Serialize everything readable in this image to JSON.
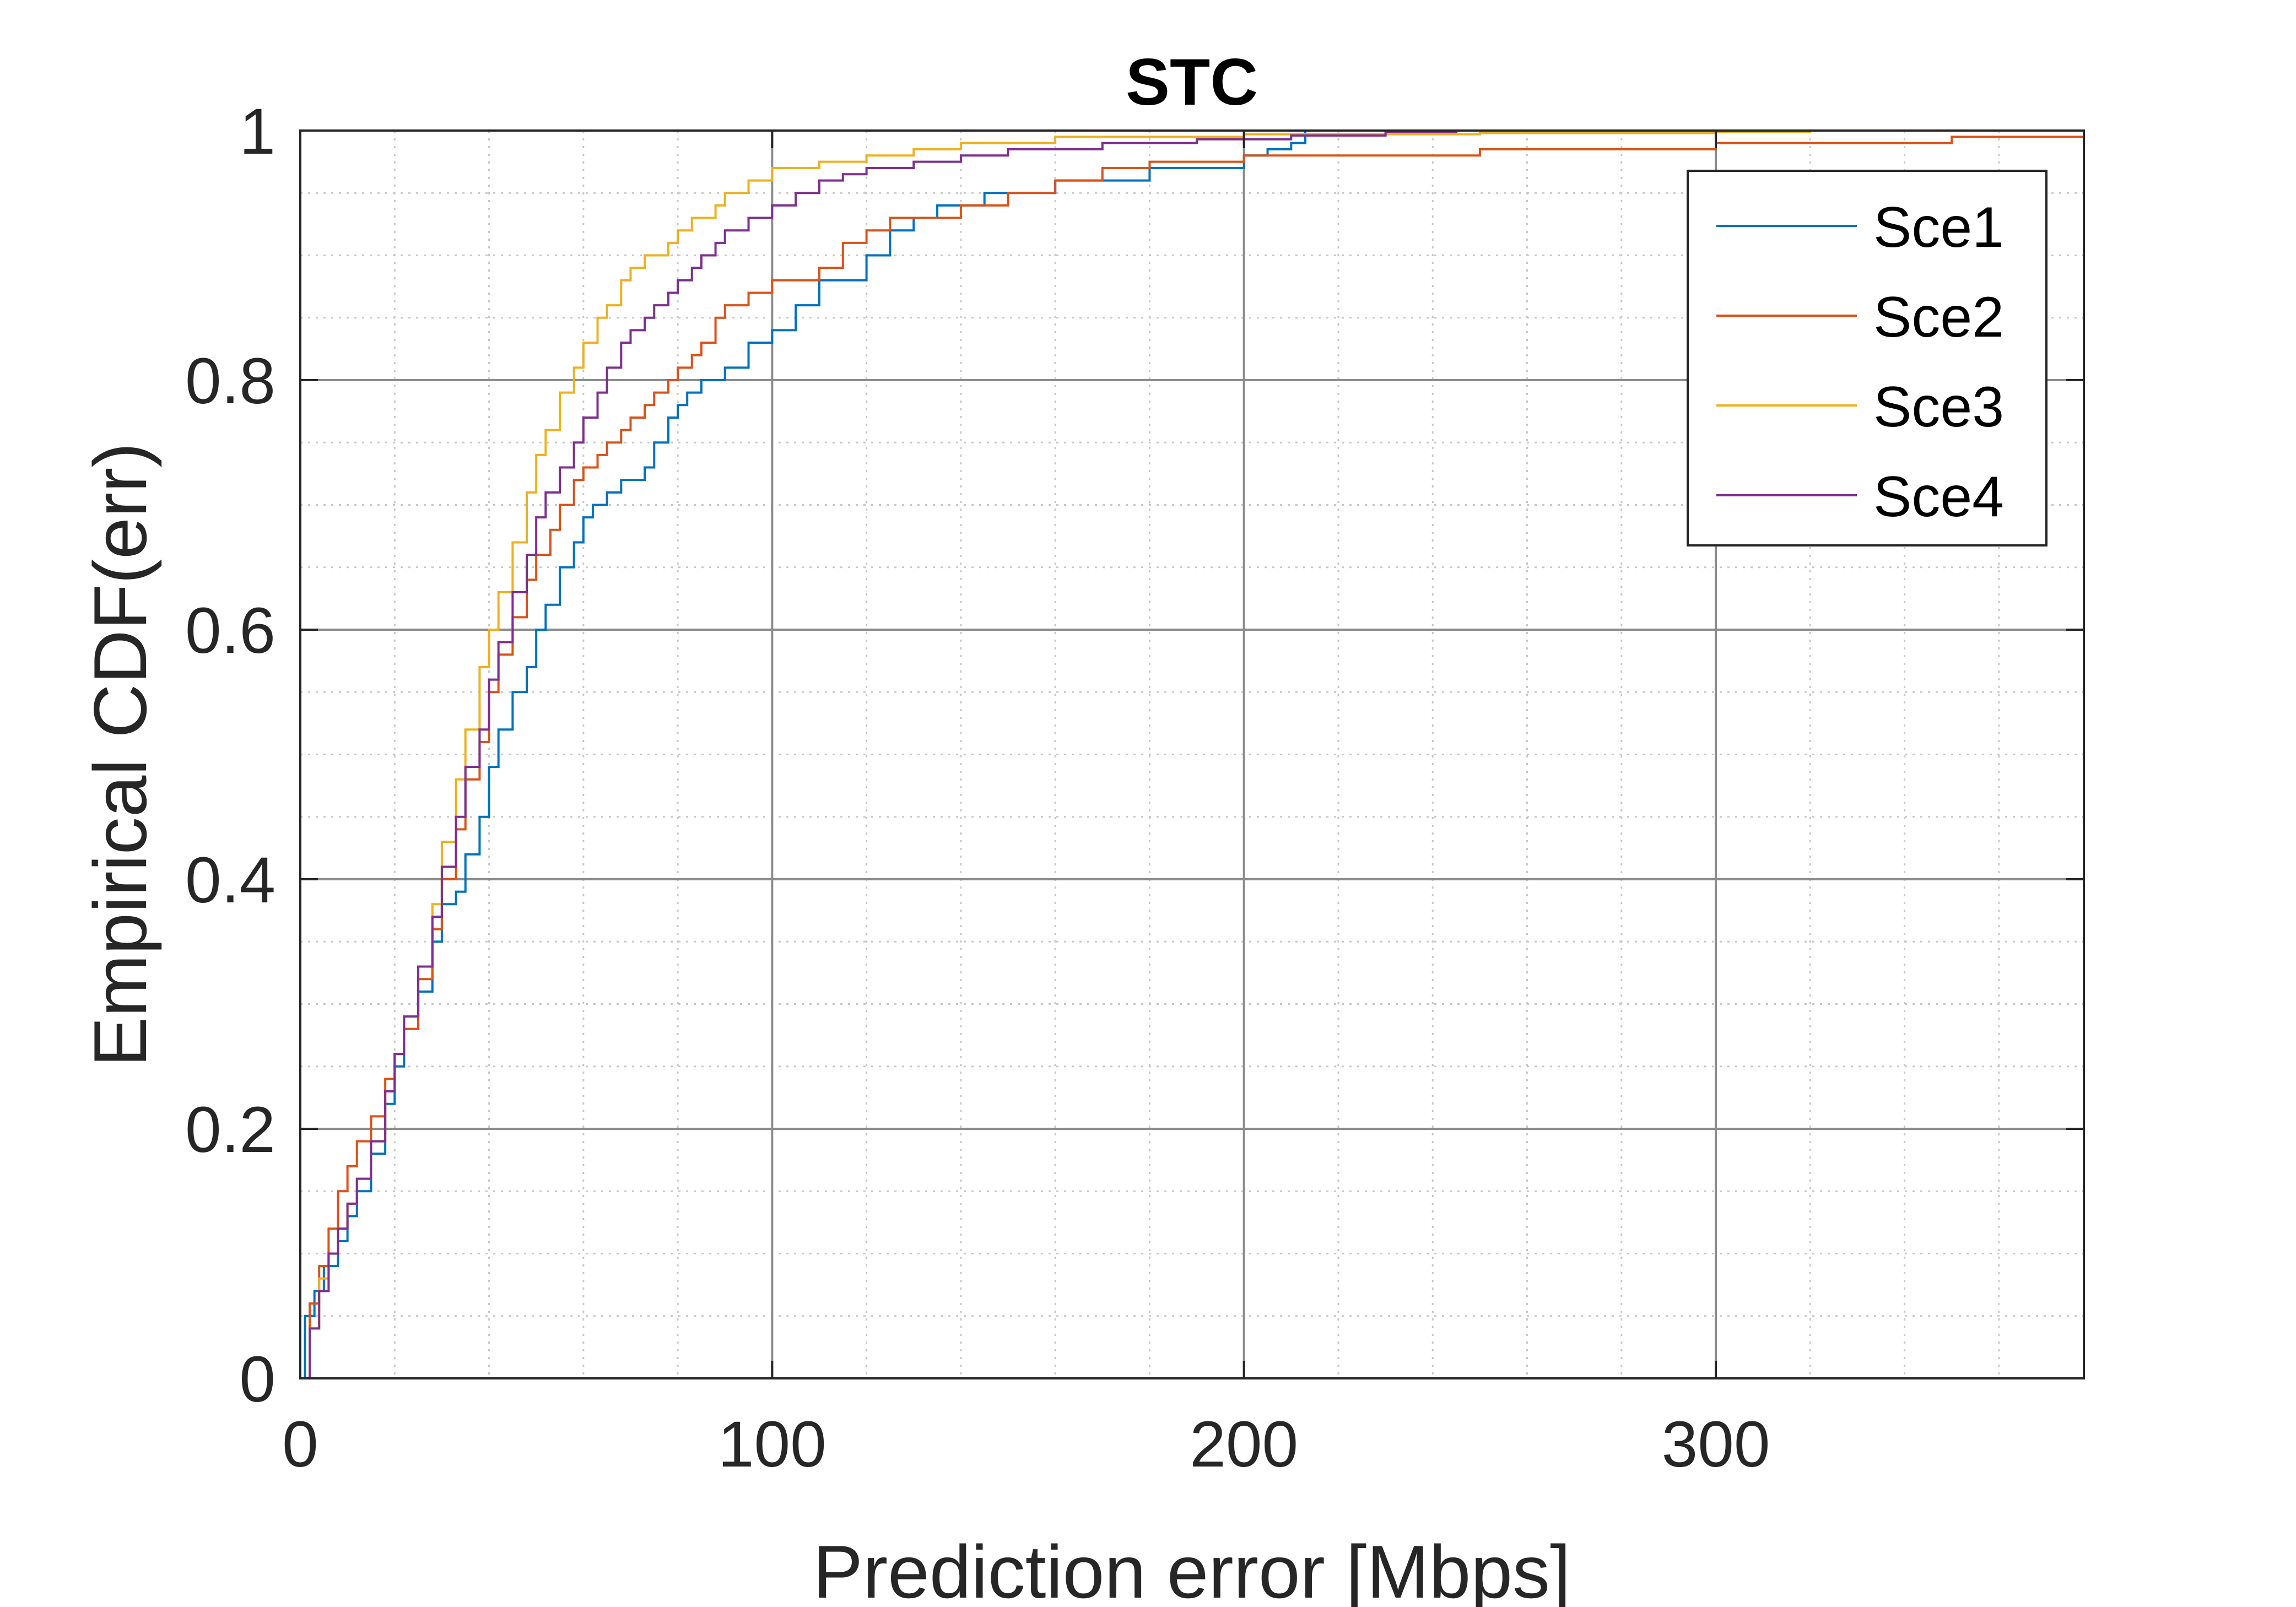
{
  "chart_data": {
    "type": "line",
    "title": "STC",
    "xlabel": "Prediction error [Mbps]",
    "ylabel": "Empirical CDF(err)",
    "xlim": [
      0,
      378
    ],
    "ylim": [
      0,
      1
    ],
    "xticks": [
      0,
      100,
      200,
      300
    ],
    "xtick_labels": [
      "0",
      "100",
      "200",
      "300"
    ],
    "yticks": [
      0,
      0.2,
      0.4,
      0.6,
      0.8,
      1
    ],
    "ytick_labels": [
      "0",
      "0.2",
      "0.4",
      "0.6",
      "0.8",
      "1"
    ],
    "grid": true,
    "minor_grid": true,
    "legend_position": "top-right",
    "series": [
      {
        "name": "Sce1",
        "color": "#0072BD",
        "x": [
          0,
          1,
          3,
          5,
          8,
          10,
          12,
          15,
          18,
          20,
          22,
          25,
          28,
          30,
          33,
          35,
          38,
          40,
          42,
          45,
          48,
          50,
          52,
          55,
          58,
          60,
          62,
          65,
          68,
          70,
          73,
          75,
          78,
          80,
          82,
          85,
          88,
          90,
          95,
          100,
          105,
          110,
          115,
          120,
          125,
          130,
          135,
          140,
          145,
          150,
          160,
          170,
          180,
          190,
          200,
          205,
          210,
          213,
          220
        ],
        "y": [
          0,
          0.05,
          0.07,
          0.09,
          0.11,
          0.13,
          0.15,
          0.18,
          0.22,
          0.25,
          0.28,
          0.31,
          0.35,
          0.38,
          0.39,
          0.42,
          0.45,
          0.49,
          0.52,
          0.55,
          0.57,
          0.6,
          0.62,
          0.65,
          0.67,
          0.69,
          0.7,
          0.71,
          0.72,
          0.72,
          0.73,
          0.75,
          0.77,
          0.78,
          0.79,
          0.8,
          0.8,
          0.81,
          0.83,
          0.84,
          0.86,
          0.88,
          0.88,
          0.9,
          0.92,
          0.93,
          0.94,
          0.94,
          0.95,
          0.95,
          0.96,
          0.96,
          0.97,
          0.97,
          0.98,
          0.985,
          0.99,
          1.0,
          1.0
        ]
      },
      {
        "name": "Sce2",
        "color": "#D95319",
        "x": [
          0,
          2,
          4,
          6,
          8,
          10,
          12,
          15,
          18,
          20,
          22,
          25,
          28,
          30,
          33,
          35,
          38,
          40,
          42,
          45,
          48,
          50,
          53,
          55,
          58,
          60,
          63,
          65,
          68,
          70,
          73,
          75,
          78,
          80,
          83,
          85,
          88,
          90,
          95,
          100,
          105,
          110,
          115,
          120,
          125,
          130,
          140,
          150,
          160,
          170,
          180,
          200,
          250,
          300,
          350,
          378
        ],
        "y": [
          0,
          0.06,
          0.09,
          0.12,
          0.15,
          0.17,
          0.19,
          0.21,
          0.24,
          0.26,
          0.28,
          0.32,
          0.36,
          0.4,
          0.44,
          0.48,
          0.51,
          0.55,
          0.58,
          0.61,
          0.64,
          0.66,
          0.68,
          0.7,
          0.72,
          0.73,
          0.74,
          0.75,
          0.76,
          0.77,
          0.78,
          0.79,
          0.8,
          0.81,
          0.82,
          0.83,
          0.85,
          0.86,
          0.87,
          0.88,
          0.88,
          0.89,
          0.91,
          0.92,
          0.93,
          0.93,
          0.94,
          0.95,
          0.96,
          0.97,
          0.975,
          0.98,
          0.985,
          0.99,
          0.995,
          1.0
        ]
      },
      {
        "name": "Sce3",
        "color": "#EDB120",
        "x": [
          0,
          2,
          4,
          6,
          8,
          10,
          12,
          15,
          18,
          20,
          22,
          25,
          28,
          30,
          33,
          35,
          38,
          40,
          42,
          45,
          48,
          50,
          52,
          55,
          58,
          60,
          63,
          65,
          68,
          70,
          73,
          75,
          78,
          80,
          83,
          85,
          88,
          90,
          95,
          100,
          105,
          110,
          120,
          130,
          140,
          150,
          160,
          200,
          250,
          300,
          320
        ],
        "y": [
          0,
          0.04,
          0.08,
          0.1,
          0.12,
          0.14,
          0.16,
          0.19,
          0.23,
          0.26,
          0.29,
          0.33,
          0.38,
          0.43,
          0.48,
          0.52,
          0.57,
          0.6,
          0.63,
          0.67,
          0.71,
          0.74,
          0.76,
          0.79,
          0.81,
          0.83,
          0.85,
          0.86,
          0.88,
          0.89,
          0.9,
          0.9,
          0.91,
          0.92,
          0.93,
          0.93,
          0.94,
          0.95,
          0.96,
          0.97,
          0.97,
          0.975,
          0.98,
          0.985,
          0.99,
          0.99,
          0.995,
          0.997,
          0.998,
          0.999,
          1.0
        ]
      },
      {
        "name": "Sce4",
        "color": "#7E2F8E",
        "x": [
          0,
          2,
          4,
          6,
          8,
          10,
          12,
          15,
          18,
          20,
          22,
          25,
          28,
          30,
          33,
          35,
          38,
          40,
          42,
          45,
          48,
          50,
          52,
          55,
          58,
          60,
          63,
          65,
          68,
          70,
          73,
          75,
          78,
          80,
          83,
          85,
          88,
          90,
          95,
          100,
          105,
          110,
          115,
          120,
          130,
          140,
          150,
          170,
          190,
          210,
          230,
          245
        ],
        "y": [
          0,
          0.04,
          0.07,
          0.1,
          0.12,
          0.14,
          0.16,
          0.19,
          0.23,
          0.26,
          0.29,
          0.33,
          0.37,
          0.41,
          0.45,
          0.49,
          0.52,
          0.56,
          0.59,
          0.63,
          0.66,
          0.69,
          0.71,
          0.73,
          0.75,
          0.77,
          0.79,
          0.81,
          0.83,
          0.84,
          0.85,
          0.86,
          0.87,
          0.88,
          0.89,
          0.9,
          0.91,
          0.92,
          0.93,
          0.94,
          0.95,
          0.96,
          0.965,
          0.97,
          0.975,
          0.98,
          0.985,
          0.99,
          0.993,
          0.996,
          0.999,
          1.0
        ]
      }
    ]
  }
}
